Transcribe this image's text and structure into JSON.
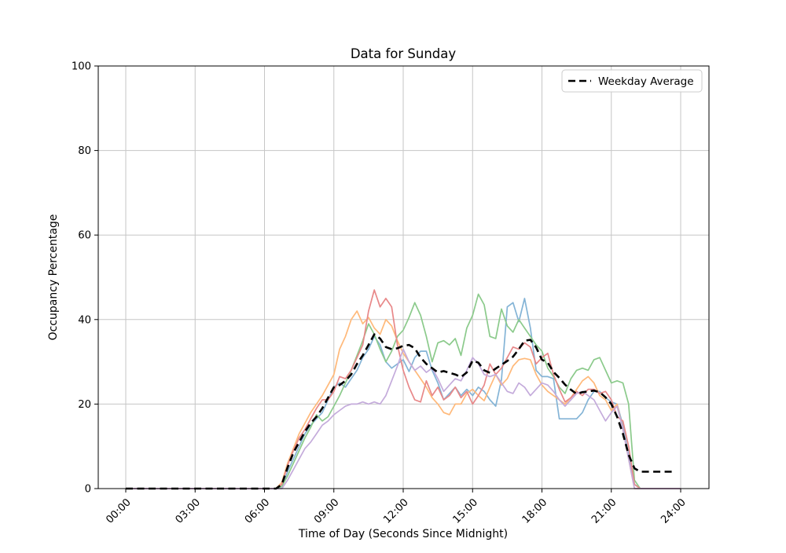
{
  "title": "Data for Sunday",
  "legend": {
    "label": "Weekday Average"
  },
  "colors": {
    "grid": "#c6c6c6",
    "spine": "#000000",
    "legend_border": "#cccccc",
    "average_line": "#000000",
    "line1": "#84b4d6",
    "line2": "#ffb97a",
    "line3": "#8bca8b",
    "line4": "#e88889",
    "line5": "#c4abdb"
  },
  "chart_data": {
    "type": "line",
    "title": "Data for Sunday",
    "xlabel": "Time of Day (Seconds Since Midnight)",
    "ylabel": "Occupancy Percentage",
    "ylim": [
      0,
      100
    ],
    "xlim_hours": [
      0,
      24
    ],
    "grid": true,
    "legend_position": "upper right",
    "x_tick_hours": [
      0,
      3,
      6,
      9,
      12,
      15,
      18,
      21,
      24
    ],
    "x_tick_labels": [
      "00:00",
      "03:00",
      "06:00",
      "09:00",
      "12:00",
      "15:00",
      "18:00",
      "21:00",
      "24:00"
    ],
    "y_ticks": [
      0,
      20,
      40,
      60,
      80,
      100
    ],
    "x_hours_step": 0.25,
    "series": [
      {
        "name": "line-1",
        "color": "#84b4d6",
        "width": 1.7,
        "values": [
          0,
          0,
          0,
          0,
          0,
          0,
          0,
          0,
          0,
          0,
          0,
          0,
          0,
          0,
          0,
          0,
          0,
          0,
          0,
          0,
          0,
          0,
          0,
          0,
          0,
          0,
          0,
          0.5,
          4,
          7,
          10,
          13,
          15,
          16.5,
          18,
          21,
          24,
          25,
          24,
          26,
          28,
          31,
          33,
          36,
          34,
          30,
          28.5,
          29.5,
          30.5,
          27.7,
          31,
          32.5,
          32.5,
          28,
          25,
          21,
          22.5,
          24,
          22,
          23.5,
          22,
          24,
          23,
          21,
          19.5,
          25.8,
          43,
          44,
          39.5,
          45,
          38,
          28,
          26.5,
          26.5,
          26,
          16.5,
          16.5,
          16.5,
          16.5,
          18,
          21,
          23,
          23,
          21.5,
          20.5,
          20,
          15,
          8,
          1,
          0,
          0,
          0,
          0,
          0,
          0,
          0,
          0
        ]
      },
      {
        "name": "line-2",
        "color": "#ffb97a",
        "width": 1.7,
        "values": [
          0,
          0,
          0,
          0,
          0,
          0,
          0,
          0,
          0,
          0,
          0,
          0,
          0,
          0,
          0,
          0,
          0,
          0,
          0,
          0,
          0,
          0,
          0,
          0,
          0,
          0,
          0,
          1.5,
          6,
          9.5,
          13,
          15.5,
          18,
          20,
          22,
          24.5,
          27,
          33,
          36,
          40,
          42,
          39,
          40.5,
          38,
          36.5,
          40,
          38.5,
          35,
          32,
          30,
          28,
          26,
          24,
          21.5,
          20,
          18,
          17.5,
          20,
          20,
          22.5,
          23.5,
          22,
          20.8,
          24,
          27,
          24.5,
          26,
          29,
          30.5,
          30.8,
          30.5,
          27,
          24.5,
          23,
          22,
          21,
          20,
          21.5,
          23.5,
          25.5,
          26.5,
          25,
          22,
          21,
          18.5,
          20,
          14,
          7,
          0,
          0,
          0,
          0,
          0,
          0,
          0,
          0,
          0
        ]
      },
      {
        "name": "line-3",
        "color": "#8bca8b",
        "width": 1.7,
        "values": [
          0,
          0,
          0,
          0,
          0,
          0,
          0,
          0,
          0,
          0,
          0,
          0,
          0,
          0,
          0,
          0,
          0,
          0,
          0,
          0,
          0,
          0,
          0,
          0,
          0,
          0,
          0,
          0.5,
          3,
          6,
          9,
          12,
          14.5,
          17.5,
          16,
          17,
          19.5,
          22,
          25,
          28,
          31.5,
          35,
          39,
          36.5,
          33,
          30,
          32.5,
          36,
          37.5,
          40.5,
          44,
          41,
          36,
          30,
          34.5,
          35,
          34,
          35.5,
          31.5,
          38,
          41,
          46,
          43.5,
          36,
          35.5,
          42.5,
          38.5,
          37,
          40,
          38,
          36,
          34,
          32.5,
          28.5,
          26.5,
          24,
          22.5,
          26,
          28,
          28.5,
          28,
          30.5,
          31,
          28,
          25,
          25.5,
          25,
          20,
          2,
          0,
          0,
          0,
          0,
          0,
          0,
          0,
          0
        ]
      },
      {
        "name": "line-4",
        "color": "#e88889",
        "width": 1.7,
        "values": [
          0,
          0,
          0,
          0,
          0,
          0,
          0,
          0,
          0,
          0,
          0,
          0,
          0,
          0,
          0,
          0,
          0,
          0,
          0,
          0,
          0,
          0,
          0,
          0,
          0,
          0,
          0,
          1,
          5.5,
          9,
          12,
          14,
          16.5,
          19,
          21,
          21,
          23,
          26.5,
          26,
          28,
          31,
          34,
          42,
          47,
          43,
          45,
          43,
          34,
          28,
          24,
          21,
          20.5,
          25.5,
          22,
          24,
          21,
          22,
          24,
          21.5,
          23,
          20,
          22,
          24.5,
          29.5,
          27,
          28.5,
          31,
          33.5,
          33,
          34.5,
          33.5,
          29.5,
          31,
          32,
          27,
          23.5,
          20.5,
          21.5,
          23,
          22,
          23.5,
          23.5,
          22.5,
          23,
          21,
          17,
          16,
          10,
          1,
          0,
          0,
          0,
          0,
          0,
          0,
          0,
          0
        ]
      },
      {
        "name": "line-5",
        "color": "#c4abdb",
        "width": 1.7,
        "values": [
          0,
          0,
          0,
          0,
          0,
          0,
          0,
          0,
          0,
          0,
          0,
          0,
          0,
          0,
          0,
          0,
          0,
          0,
          0,
          0,
          0,
          0,
          0,
          0,
          0,
          0,
          0,
          0,
          2,
          4.5,
          7,
          9.5,
          11,
          13,
          15,
          16,
          17.5,
          18.5,
          19.5,
          20,
          20,
          20.5,
          20,
          20.5,
          20,
          22,
          25.5,
          29,
          33,
          30,
          28,
          29,
          27.5,
          28.5,
          26,
          23,
          24.5,
          26,
          25.5,
          28,
          31,
          29.5,
          27,
          26.5,
          27,
          25,
          23,
          22.5,
          25,
          24,
          22,
          23.5,
          25,
          24.5,
          23,
          21,
          19.5,
          21,
          22.5,
          23,
          22,
          21,
          18.5,
          16,
          18,
          19.5,
          14,
          7,
          0,
          0,
          0,
          0,
          0,
          0,
          0,
          0,
          0
        ]
      },
      {
        "name": "Weekday Average",
        "color": "#000000",
        "width": 2.6,
        "dash": "9 5.5",
        "values": [
          0,
          0,
          0,
          0,
          0,
          0,
          0,
          0,
          0,
          0,
          0,
          0,
          0,
          0,
          0,
          0,
          0,
          0,
          0,
          0,
          0,
          0,
          0,
          0,
          0,
          0,
          0,
          1,
          5,
          8.5,
          11,
          13.5,
          15.5,
          17,
          19,
          21.5,
          24,
          24.5,
          25.5,
          27,
          29.5,
          31.5,
          34,
          36.5,
          35.5,
          33.5,
          33,
          33.2,
          33.8,
          34,
          33.2,
          31,
          29.5,
          28.5,
          27.5,
          27.8,
          27.4,
          27,
          26.4,
          27.5,
          30.3,
          29.8,
          28,
          27.4,
          28.4,
          29.3,
          30.2,
          31.2,
          33,
          35,
          35.2,
          33.4,
          30.5,
          29.8,
          27.6,
          26.2,
          24.6,
          23.4,
          22.4,
          22.8,
          23,
          23.2,
          22.8,
          21.6,
          20,
          17,
          13,
          8,
          4.8,
          4,
          4,
          4,
          4,
          4,
          4,
          4,
          null
        ]
      }
    ]
  }
}
